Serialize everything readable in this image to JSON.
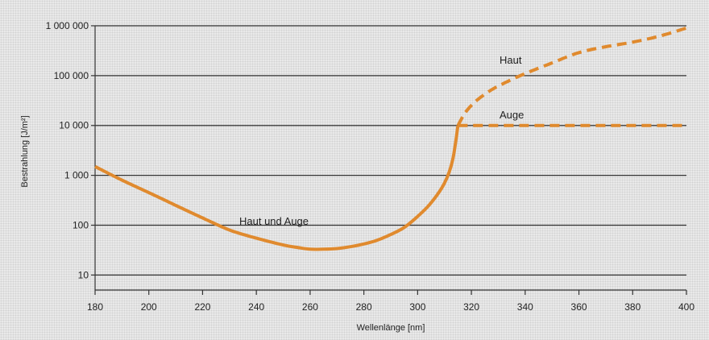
{
  "chart_data": {
    "type": "line",
    "xlabel": "Wellenlänge [nm]",
    "ylabel": "Bestrahlung [J/m²]",
    "y_scale": "log",
    "xlim": [
      180,
      400
    ],
    "ylim": [
      5,
      1000000
    ],
    "grid": true,
    "x_ticks": [
      180,
      200,
      220,
      240,
      260,
      280,
      300,
      320,
      340,
      360,
      380,
      400
    ],
    "x_tick_labels": [
      "180",
      "200",
      "220",
      "240",
      "260",
      "280",
      "300",
      "320",
      "340",
      "360",
      "380",
      "400"
    ],
    "y_ticks": [
      10,
      100,
      1000,
      10000,
      100000,
      1000000
    ],
    "y_tick_labels": [
      "10",
      "100",
      "1 000",
      "10 000",
      "100 000",
      "1 000 000"
    ],
    "color": "#e08a2e",
    "series": [
      {
        "name": "Haut und Auge",
        "style": "solid",
        "x": [
          180,
          190,
          200,
          210,
          220,
          230,
          240,
          250,
          255,
          260,
          265,
          270,
          275,
          280,
          285,
          290,
          295,
          300,
          305,
          310,
          313,
          315
        ],
        "y": [
          1500,
          800,
          450,
          250,
          140,
          80,
          55,
          40,
          36,
          33,
          33,
          34,
          37,
          42,
          50,
          65,
          90,
          150,
          280,
          700,
          2000,
          10000
        ]
      },
      {
        "name": "Haut",
        "style": "dashed",
        "x": [
          315,
          318,
          322,
          327,
          332,
          340,
          350,
          360,
          370,
          380,
          390,
          400
        ],
        "y": [
          10000,
          19000,
          32000,
          50000,
          70000,
          110000,
          180000,
          290000,
          380000,
          470000,
          620000,
          900000
        ]
      },
      {
        "name": "Auge",
        "style": "dashed",
        "x": [
          315,
          320,
          340,
          360,
          380,
          400
        ],
        "y": [
          10000,
          10000,
          10000,
          10000,
          10000,
          10000
        ]
      }
    ]
  }
}
